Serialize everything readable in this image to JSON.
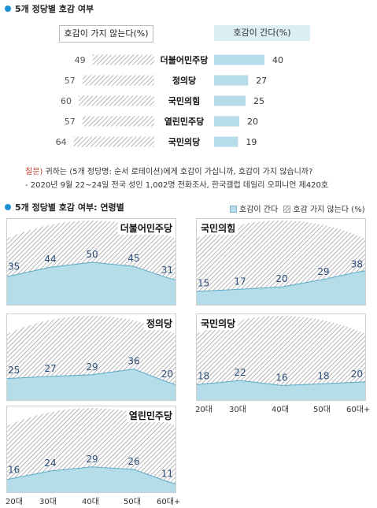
{
  "top": {
    "title": "5개 정당별 호감 여부",
    "neg_header": "호감이 가지 않는다(%)",
    "pos_header": "호감이 간다(%)"
  },
  "colors": {
    "accent": "#1f8fd6",
    "pos_fill": "#b4dce9",
    "pos_line": "#5fa9c8",
    "hatch": "#8e8e8e",
    "note_red": "#c0392b"
  },
  "note": {
    "question_label": "질문)",
    "question_text": " 귀하는 (5개 정당명: 순서 로테이션)에게 호감이 가십니까, 호감이 가지 않습니까?",
    "source": "- 2020년 9월 22~24일 전국 성인 1,002명 전화조사, 한국갤럽 데일리 오피니언 제420호"
  },
  "age_section": {
    "title": "5개 정당별 호감 여부: 연령별",
    "legend_pos": "호감이 간다",
    "legend_neg": "호감 가지 않는다 (%)",
    "age_ticks": [
      "20대",
      "30대",
      "40대",
      "50대",
      "60대+"
    ]
  },
  "chart_data": [
    {
      "type": "bar",
      "title": "5개 정당별 호감 여부",
      "categories": [
        "더불어민주당",
        "정의당",
        "국민의힘",
        "열린민주당",
        "국민의당"
      ],
      "series": [
        {
          "name": "호감이 가지 않는다(%)",
          "values": [
            49,
            57,
            60,
            57,
            64
          ]
        },
        {
          "name": "호감이 간다(%)",
          "values": [
            40,
            27,
            25,
            20,
            19
          ]
        }
      ]
    },
    {
      "type": "area",
      "title": "더불어민주당",
      "x": [
        "20대",
        "30대",
        "40대",
        "50대",
        "60대+"
      ],
      "series": [
        {
          "name": "호감이 간다",
          "values": [
            35,
            44,
            50,
            45,
            31
          ]
        }
      ],
      "ylim": [
        0,
        100
      ]
    },
    {
      "type": "area",
      "title": "국민의힘",
      "x": [
        "20대",
        "30대",
        "40대",
        "50대",
        "60대+"
      ],
      "series": [
        {
          "name": "호감이 간다",
          "values": [
            15,
            17,
            20,
            29,
            38
          ]
        }
      ],
      "ylim": [
        0,
        100
      ]
    },
    {
      "type": "area",
      "title": "정의당",
      "x": [
        "20대",
        "30대",
        "40대",
        "50대",
        "60대+"
      ],
      "series": [
        {
          "name": "호감이 간다",
          "values": [
            25,
            27,
            29,
            36,
            20
          ]
        }
      ],
      "ylim": [
        0,
        100
      ]
    },
    {
      "type": "area",
      "title": "국민의당",
      "x": [
        "20대",
        "30대",
        "40대",
        "50대",
        "60대+"
      ],
      "series": [
        {
          "name": "호감이 간다",
          "values": [
            18,
            22,
            16,
            18,
            20
          ]
        }
      ],
      "ylim": [
        0,
        100
      ]
    },
    {
      "type": "area",
      "title": "열린민주당",
      "x": [
        "20대",
        "30대",
        "40대",
        "50대",
        "60대+"
      ],
      "series": [
        {
          "name": "호감이 간다",
          "values": [
            16,
            24,
            29,
            26,
            11
          ]
        }
      ],
      "ylim": [
        0,
        100
      ]
    }
  ]
}
